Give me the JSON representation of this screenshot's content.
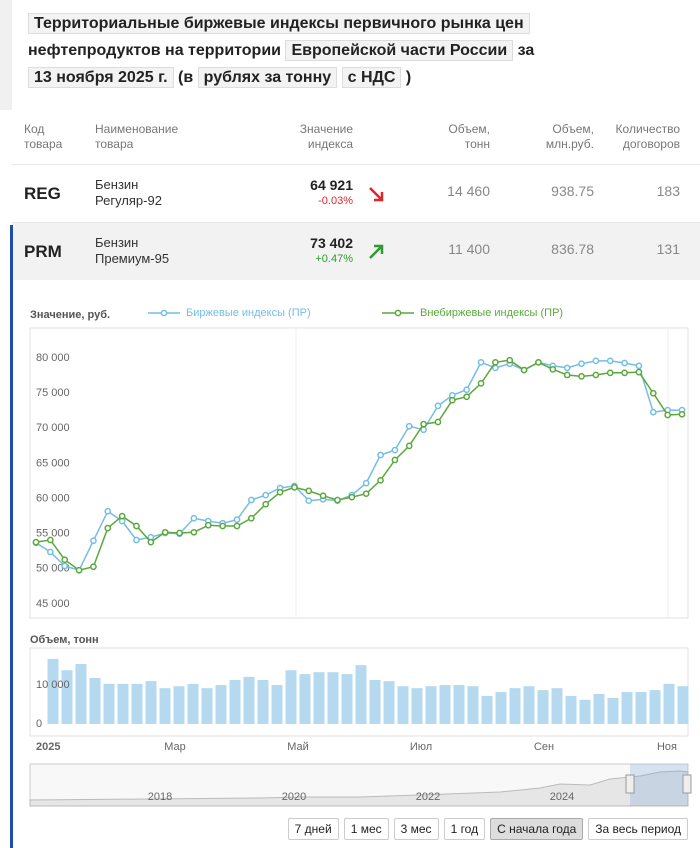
{
  "title": {
    "line1": "Территориальные биржевые индексы первичного рынка цен",
    "text2": "нефтепродуктов на территории",
    "region": "Европейской части России",
    "text3": "за",
    "date": "13 ноября 2025 г.",
    "text4": "(в",
    "unit": "рублях за тонну",
    "vat": "с НДС",
    "text5": ")"
  },
  "table": {
    "headers": [
      "Код товара",
      "Наименование товара",
      "Значение индекса",
      "Объем, тонн",
      "Объем, млн.руб.",
      "Количество договоров"
    ],
    "rows": [
      {
        "code": "REG",
        "name": "Бензин Регуляр-92",
        "value": "64 921",
        "change": "-0.03%",
        "direction": "down",
        "volume_t": "14 460",
        "volume_rub": "938.75",
        "contracts": "183"
      },
      {
        "code": "PRM",
        "name": "Бензин Премиум-95",
        "value": "73 402",
        "change": "+0.47%",
        "direction": "up",
        "volume_t": "11 400",
        "volume_rub": "836.78",
        "contracts": "131"
      }
    ]
  },
  "chart_data": [
    {
      "type": "line",
      "title": "Значение, руб.",
      "series": [
        {
          "name": "Биржевые индексы (ПР)",
          "color": "#74bde6",
          "values": [
            53700,
            52400,
            50400,
            49800,
            54000,
            58200,
            56800,
            54100,
            54500,
            55100,
            55000,
            57200,
            56800,
            56500,
            57000,
            59800,
            60500,
            61500,
            61800,
            59700,
            59900,
            59700,
            60500,
            62200,
            66200,
            66900,
            70300,
            69800,
            73200,
            74700,
            75500,
            79400,
            78600,
            79200,
            78300,
            79400,
            78900,
            78600,
            79200,
            79600,
            79600,
            79300,
            78900,
            72300,
            72600,
            72600
          ]
        },
        {
          "name": "Внебиржевые индексы (ПР)",
          "color": "#5aa83c",
          "values": [
            53800,
            54100,
            51300,
            49800,
            50300,
            55800,
            57500,
            56100,
            53800,
            55200,
            55100,
            55200,
            56200,
            56100,
            56100,
            57200,
            59200,
            60900,
            61600,
            61100,
            60400,
            59800,
            60200,
            60700,
            62600,
            65500,
            67500,
            70600,
            70900,
            74000,
            74500,
            76400,
            79400,
            79700,
            78300,
            79400,
            78400,
            77600,
            77400,
            77600,
            77900,
            77900,
            78000,
            75000,
            71900,
            72000
          ]
        }
      ],
      "ylim": [
        43000,
        84000
      ],
      "yticks": [
        {
          "value": 45000,
          "label": "45 000"
        },
        {
          "value": 50000,
          "label": "50 000"
        },
        {
          "value": 55000,
          "label": "55 000"
        },
        {
          "value": 60000,
          "label": "60 000"
        },
        {
          "value": 65000,
          "label": "65 000"
        },
        {
          "value": 70000,
          "label": "70 000"
        },
        {
          "value": 75000,
          "label": "75 000"
        },
        {
          "value": 80000,
          "label": "80 000"
        }
      ],
      "grid": false
    },
    {
      "type": "bar",
      "title": "Объем, тонн",
      "color": "#b5daef",
      "values": [
        16700,
        13800,
        15400,
        11800,
        10300,
        10300,
        10300,
        11000,
        9200,
        9700,
        10300,
        9200,
        10000,
        11300,
        12100,
        11300,
        10000,
        13800,
        12800,
        13300,
        13300,
        12800,
        15100,
        11300,
        11000,
        9700,
        9200,
        9700,
        10000,
        10000,
        9700,
        7200,
        8200,
        9200,
        9700,
        8700,
        9200,
        7200,
        6200,
        7700,
        6700,
        8200,
        8200,
        8700,
        10300,
        9700
      ],
      "ylim": [
        0,
        19500
      ],
      "yticks": [
        0,
        {
          "value": 10000,
          "label": "10 000"
        }
      ],
      "grid": false
    }
  ],
  "x_axis": {
    "labels": [
      "2025",
      "Мар",
      "Май",
      "Июл",
      "Сен",
      "Ноя"
    ]
  },
  "navigator": {
    "labels": [
      "2018",
      "2020",
      "2022",
      "2024"
    ]
  },
  "buttons": [
    "7 дней",
    "1 мес",
    "3 мес",
    "1 год",
    "С начала года",
    "За весь период"
  ]
}
